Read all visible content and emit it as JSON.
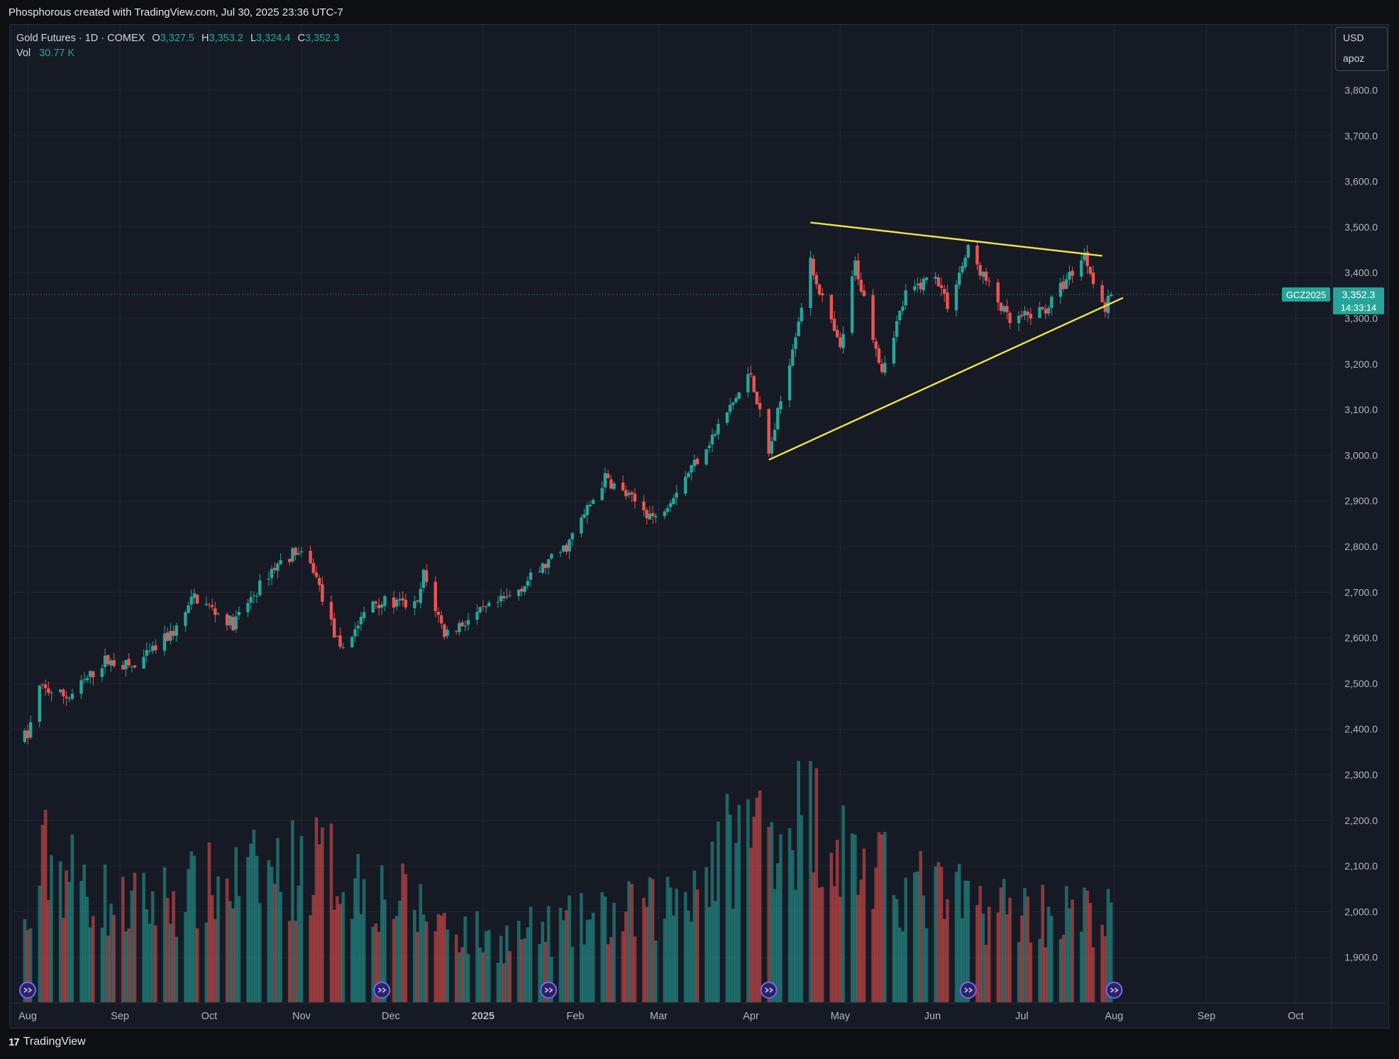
{
  "caption": "Phosphorous created with TradingView.com, Jul 30, 2025 23:36 UTC-7",
  "legend": {
    "symbol_line": "Gold Futures · 1D · COMEX",
    "o_label": "O",
    "o_value": "3,327.5",
    "h_label": "H",
    "h_value": "3,353.2",
    "l_label": "L",
    "l_value": "3,324.4",
    "c_label": "C",
    "c_value": "3,352.3",
    "vol_label": "Vol",
    "vol_value": "30.77 K"
  },
  "scale_box": {
    "currency": "USD",
    "mode": "apoz"
  },
  "price_tag": {
    "symbol": "GCZ2025",
    "price": "3,352.3",
    "countdown": "14:33:14"
  },
  "footer": {
    "brand": "TradingView"
  },
  "colors": {
    "up": "#26a69a",
    "down": "#ef5350",
    "trendline": "#f0e446",
    "background": "#161a25",
    "grid": "#232733"
  },
  "chart_data": {
    "type": "candlestick",
    "title": "Gold Futures · 1D · COMEX",
    "x_tick_labels": [
      "Aug",
      "Sep",
      "Oct",
      "Nov",
      "Dec",
      "2025",
      "Feb",
      "Mar",
      "Apr",
      "May",
      "Jun",
      "Jul",
      "Aug",
      "Sep",
      "Oct"
    ],
    "y_tick_labels": [
      "3,800.0",
      "3,700.0",
      "3,600.0",
      "3,500.0",
      "3,400.0",
      "3,300.0",
      "3,200.0",
      "3,100.0",
      "3,000.0",
      "2,900.0",
      "2,800.0",
      "2,700.0",
      "2,600.0",
      "2,500.0",
      "2,400.0",
      "2,300.0",
      "2,200.0",
      "2,100.0",
      "2,000.0",
      "1,900.0"
    ],
    "ylim": [
      1820,
      3900
    ],
    "grid": true,
    "last_price": 3352.3,
    "anchor_points": [
      {
        "date": "2024-08-01",
        "price": 2385
      },
      {
        "date": "2024-08-05",
        "price": 2490
      },
      {
        "date": "2024-08-15",
        "price": 2470
      },
      {
        "date": "2024-08-27",
        "price": 2550
      },
      {
        "date": "2024-09-06",
        "price": 2535
      },
      {
        "date": "2024-09-20",
        "price": 2620
      },
      {
        "date": "2024-09-26",
        "price": 2690
      },
      {
        "date": "2024-10-09",
        "price": 2630
      },
      {
        "date": "2024-10-22",
        "price": 2750
      },
      {
        "date": "2024-10-30",
        "price": 2790
      },
      {
        "date": "2024-11-05",
        "price": 2750
      },
      {
        "date": "2024-11-14",
        "price": 2570
      },
      {
        "date": "2024-11-25",
        "price": 2680
      },
      {
        "date": "2024-12-10",
        "price": 2670
      },
      {
        "date": "2024-12-12",
        "price": 2740
      },
      {
        "date": "2024-12-19",
        "price": 2610
      },
      {
        "date": "2025-01-10",
        "price": 2690
      },
      {
        "date": "2025-01-29",
        "price": 2800
      },
      {
        "date": "2025-02-11",
        "price": 2950
      },
      {
        "date": "2025-02-28",
        "price": 2860
      },
      {
        "date": "2025-03-20",
        "price": 3050
      },
      {
        "date": "2025-04-01",
        "price": 3180
      },
      {
        "date": "2025-04-07",
        "price": 3000
      },
      {
        "date": "2025-04-21",
        "price": 3420
      },
      {
        "date": "2025-05-01",
        "price": 3230
      },
      {
        "date": "2025-05-06",
        "price": 3420
      },
      {
        "date": "2025-05-15",
        "price": 3190
      },
      {
        "date": "2025-05-23",
        "price": 3350
      },
      {
        "date": "2025-06-02",
        "price": 3400
      },
      {
        "date": "2025-06-06",
        "price": 3330
      },
      {
        "date": "2025-06-13",
        "price": 3450
      },
      {
        "date": "2025-06-27",
        "price": 3290
      },
      {
        "date": "2025-07-09",
        "price": 3320
      },
      {
        "date": "2025-07-22",
        "price": 3440
      },
      {
        "date": "2025-07-29",
        "price": 3320
      },
      {
        "date": "2025-07-31",
        "price": 3352
      }
    ],
    "volume_scale_max_k": 480,
    "volume_anchor_points_k": [
      {
        "date": "2024-08-01",
        "volume": 150
      },
      {
        "date": "2024-08-07",
        "volume": 310
      },
      {
        "date": "2024-09-01",
        "volume": 200
      },
      {
        "date": "2024-11-07",
        "volume": 300
      },
      {
        "date": "2024-12-20",
        "volume": 170
      },
      {
        "date": "2025-01-03",
        "volume": 130
      },
      {
        "date": "2025-03-01",
        "volume": 200
      },
      {
        "date": "2025-04-03",
        "volume": 380
      },
      {
        "date": "2025-04-22",
        "volume": 400
      },
      {
        "date": "2025-05-12",
        "volume": 270
      },
      {
        "date": "2025-06-12",
        "volume": 210
      },
      {
        "date": "2025-07-31",
        "volume": 180
      }
    ],
    "trendlines": [
      {
        "start": {
          "date": "2025-04-21",
          "price": 3510
        },
        "end": {
          "date": "2025-07-28",
          "price": 3437
        }
      },
      {
        "start": {
          "date": "2025-04-07",
          "price": 2990
        },
        "end": {
          "date": "2025-08-04",
          "price": 3345
        }
      }
    ],
    "event_dates": [
      "2024-08-01",
      "2024-11-28",
      "2025-01-23",
      "2025-04-07",
      "2025-06-13",
      "2025-08-01"
    ]
  }
}
